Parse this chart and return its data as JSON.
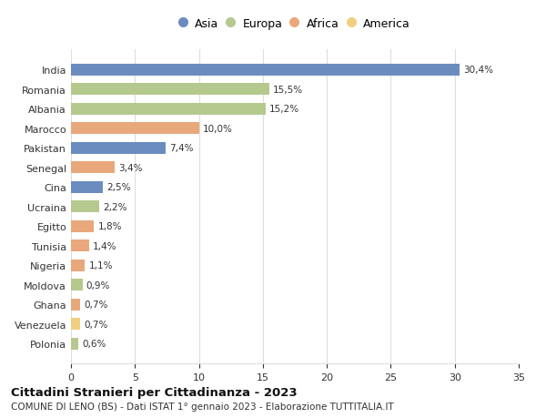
{
  "countries": [
    "India",
    "Romania",
    "Albania",
    "Marocco",
    "Pakistan",
    "Senegal",
    "Cina",
    "Ucraina",
    "Egitto",
    "Tunisia",
    "Nigeria",
    "Moldova",
    "Ghana",
    "Venezuela",
    "Polonia"
  ],
  "values": [
    30.4,
    15.5,
    15.2,
    10.0,
    7.4,
    3.4,
    2.5,
    2.2,
    1.8,
    1.4,
    1.1,
    0.9,
    0.7,
    0.7,
    0.6
  ],
  "labels": [
    "30,4%",
    "15,5%",
    "15,2%",
    "10,0%",
    "7,4%",
    "3,4%",
    "2,5%",
    "2,2%",
    "1,8%",
    "1,4%",
    "1,1%",
    "0,9%",
    "0,7%",
    "0,7%",
    "0,6%"
  ],
  "continents": [
    "Asia",
    "Europa",
    "Europa",
    "Africa",
    "Asia",
    "Africa",
    "Asia",
    "Europa",
    "Africa",
    "Africa",
    "Africa",
    "Europa",
    "Africa",
    "America",
    "Europa"
  ],
  "colors": {
    "Asia": "#6b8cbf",
    "Europa": "#b5c98e",
    "Africa": "#e8a87c",
    "America": "#f0d080"
  },
  "legend_order": [
    "Asia",
    "Europa",
    "Africa",
    "America"
  ],
  "title": "Cittadini Stranieri per Cittadinanza - 2023",
  "subtitle": "COMUNE DI LENO (BS) - Dati ISTAT 1° gennaio 2023 - Elaborazione TUTTITALIA.IT",
  "xlim": [
    0,
    35
  ],
  "xticks": [
    0,
    5,
    10,
    15,
    20,
    25,
    30,
    35
  ],
  "bg_color": "#ffffff",
  "grid_color": "#dddddd",
  "bar_height": 0.6
}
